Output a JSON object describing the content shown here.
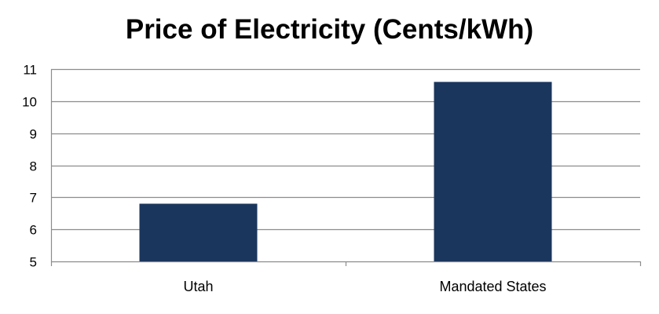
{
  "chart_data": {
    "type": "bar",
    "title": "Price of Electricity (Cents/kWh)",
    "categories": [
      "Utah",
      "Mandated States"
    ],
    "values": [
      6.8,
      10.6
    ],
    "ylim": [
      5,
      11
    ],
    "yticks": [
      5,
      6,
      7,
      8,
      9,
      10,
      11
    ],
    "xlabel": "",
    "ylabel": "",
    "grid": true,
    "legend": "none",
    "bar_color": "#1b365d",
    "grid_color": "#8c8c8c"
  }
}
